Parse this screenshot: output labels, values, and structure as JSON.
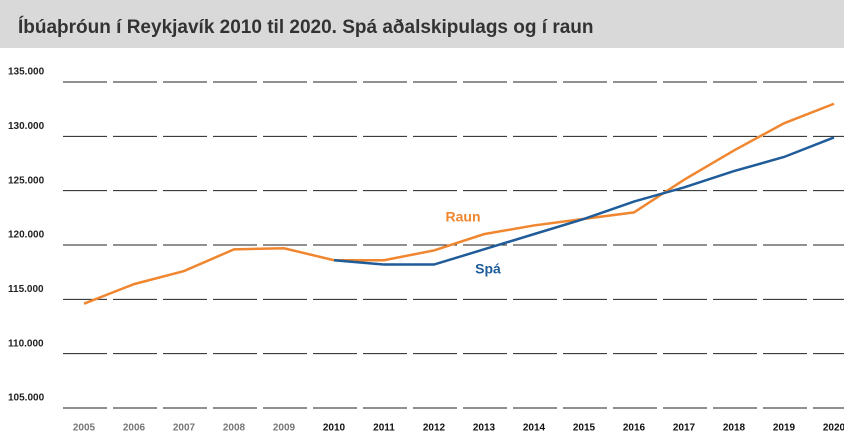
{
  "chart_data": {
    "type": "line",
    "title": "Íbúaþróun í Reykjavík 2010 til 2020. Spá aðalskipulags og í raun",
    "categories": [
      "2005",
      "2006",
      "2007",
      "2008",
      "2009",
      "2010",
      "2011",
      "2012",
      "2013",
      "2014",
      "2015",
      "2016",
      "2017",
      "2018",
      "2019",
      "2020"
    ],
    "series": [
      {
        "name": "Raun",
        "color": "#f0862f",
        "values": [
          114600,
          116400,
          117600,
          119600,
          119700,
          118600,
          118600,
          119500,
          121000,
          121800,
          122400,
          123000,
          126000,
          128700,
          131200,
          133000
        ]
      },
      {
        "name": "Spá",
        "color": "#1f5c99",
        "values": [
          null,
          null,
          null,
          null,
          null,
          118600,
          118200,
          118200,
          119600,
          121000,
          122400,
          124000,
          125300,
          126800,
          128100,
          129900
        ]
      }
    ],
    "ylim": [
      105000,
      135000
    ],
    "yticks": [
      {
        "value": 105000,
        "label": "105.000"
      },
      {
        "value": 110000,
        "label": "110.000"
      },
      {
        "value": 115000,
        "label": "115.000"
      },
      {
        "value": 120000,
        "label": "120.000"
      },
      {
        "value": 125000,
        "label": "125.000"
      },
      {
        "value": 130000,
        "label": "130.000"
      },
      {
        "value": 135000,
        "label": "135.000"
      }
    ],
    "grid": true
  }
}
